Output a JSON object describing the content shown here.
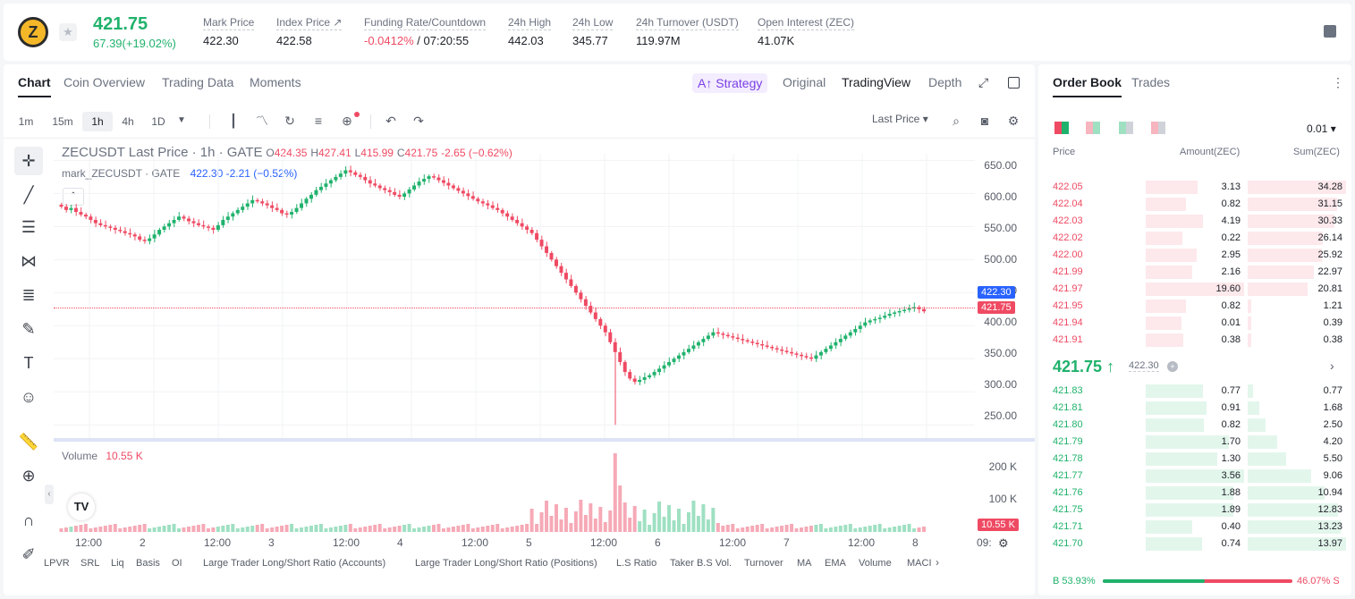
{
  "ticker": {
    "last_price": "421.75",
    "change": "67.39(+19.02%)",
    "stats": [
      {
        "label": "Mark Price",
        "value": "422.30"
      },
      {
        "label": "Index Price ↗",
        "value": "422.58"
      },
      {
        "label": "Funding Rate/Countdown",
        "value_red": "-0.0412%",
        "value": " / 07:20:55"
      },
      {
        "label": "24h High",
        "value": "442.03"
      },
      {
        "label": "24h Low",
        "value": "345.77"
      },
      {
        "label": "24h Turnover (USDT)",
        "value": "119.97M"
      },
      {
        "label": "Open Interest (ZEC)",
        "value": "41.07K"
      }
    ]
  },
  "chart_tabs": [
    "Chart",
    "Coin Overview",
    "Trading Data",
    "Moments"
  ],
  "view_tabs": {
    "strategy": "A↑ Strategy",
    "original": "Original",
    "tradingview": "TradingView",
    "depth": "Depth"
  },
  "timeframes": [
    "1m",
    "15m",
    "1h",
    "4h",
    "1D"
  ],
  "selected_timeframe": "1h",
  "price_type": "Last Price",
  "legend": {
    "title": "ZECUSDT Last Price · 1h · GATE",
    "o": "424.35",
    "h": "427.41",
    "l": "415.99",
    "c": "421.75",
    "chg": "-2.65 (−0.62%)",
    "mark_name": "mark_ZECUSDT · GATE",
    "mark_val": "422.30  -2.21 (−0.52%)"
  },
  "price_axis": [
    "650.00",
    "600.00",
    "550.00",
    "500.00",
    "450.00",
    "400.00",
    "350.00",
    "300.00",
    "250.00"
  ],
  "price_tags": {
    "mark": "422.30",
    "last": "421.75"
  },
  "volume": {
    "label": "Volume",
    "value": "10.55 K",
    "axis": [
      "200 K",
      "100 K"
    ],
    "tag": "10.55 K"
  },
  "time_axis": [
    "12:00",
    "2",
    "12:00",
    "3",
    "12:00",
    "4",
    "12:00",
    "5",
    "12:00",
    "6",
    "12:00",
    "7",
    "12:00",
    "8",
    "09:"
  ],
  "indicators": [
    "LPVR",
    "SRL",
    "Liq",
    "Basis",
    "OI",
    "Large Trader Long/Short Ratio (Accounts)",
    "Large Trader Long/Short Ratio (Positions)",
    "L.S Ratio",
    "Taker B.S Vol.",
    "Turnover",
    "MA",
    "EMA",
    "Volume",
    "MACI"
  ],
  "order_book": {
    "tabs": [
      "Order Book",
      "Trades"
    ],
    "precision": "0.01",
    "headers": [
      "Price",
      "Amount(ZEC)",
      "Sum(ZEC)"
    ],
    "asks": [
      [
        "422.05",
        "3.13",
        "34.28"
      ],
      [
        "422.04",
        "0.82",
        "31.15"
      ],
      [
        "422.03",
        "4.19",
        "30.33"
      ],
      [
        "422.02",
        "0.22",
        "26.14"
      ],
      [
        "422.00",
        "2.95",
        "25.92"
      ],
      [
        "421.99",
        "2.16",
        "22.97"
      ],
      [
        "421.97",
        "19.60",
        "20.81"
      ],
      [
        "421.95",
        "0.82",
        "1.21"
      ],
      [
        "421.94",
        "0.01",
        "0.39"
      ],
      [
        "421.91",
        "0.38",
        "0.38"
      ]
    ],
    "mid_price": "421.75",
    "mid_mark": "422.30",
    "bids": [
      [
        "421.83",
        "0.77",
        "0.77"
      ],
      [
        "421.81",
        "0.91",
        "1.68"
      ],
      [
        "421.80",
        "0.82",
        "2.50"
      ],
      [
        "421.79",
        "1.70",
        "4.20"
      ],
      [
        "421.78",
        "1.30",
        "5.50"
      ],
      [
        "421.77",
        "3.56",
        "9.06"
      ],
      [
        "421.76",
        "1.88",
        "10.94"
      ],
      [
        "421.75",
        "1.89",
        "12.83"
      ],
      [
        "421.71",
        "0.40",
        "13.23"
      ],
      [
        "421.70",
        "0.74",
        "13.97"
      ]
    ],
    "buy_ratio": "B 53.93%",
    "sell_ratio": "46.07% S",
    "buy_fraction": 0.5393
  },
  "colors": {
    "up": "#20b26c",
    "down": "#ef4a63",
    "accent": "#7b3fe4"
  },
  "chart_data": {
    "type": "candlestick",
    "y_range": [
      230,
      660
    ],
    "closes": [
      580,
      575,
      578,
      572,
      568,
      565,
      560,
      555,
      552,
      550,
      548,
      545,
      543,
      540,
      538,
      535,
      530,
      528,
      532,
      538,
      545,
      550,
      555,
      560,
      565,
      562,
      558,
      555,
      552,
      550,
      548,
      545,
      552,
      560,
      565,
      570,
      575,
      580,
      585,
      590,
      588,
      585,
      582,
      578,
      575,
      570,
      568,
      572,
      578,
      585,
      592,
      598,
      605,
      610,
      615,
      620,
      625,
      630,
      635,
      632,
      628,
      625,
      620,
      615,
      612,
      608,
      605,
      602,
      598,
      595,
      600,
      606,
      612,
      618,
      622,
      626,
      624,
      620,
      616,
      612,
      608,
      604,
      600,
      596,
      592,
      588,
      585,
      582,
      578,
      575,
      570,
      565,
      560,
      555,
      550,
      545,
      540,
      530,
      520,
      510,
      500,
      490,
      480,
      470,
      460,
      450,
      440,
      430,
      420,
      410,
      400,
      390,
      375,
      360,
      345,
      330,
      320,
      315,
      318,
      322,
      325,
      330,
      335,
      340,
      345,
      350,
      355,
      360,
      365,
      370,
      375,
      380,
      385,
      390,
      388,
      386,
      384,
      382,
      380,
      378,
      376,
      374,
      372,
      370,
      368,
      366,
      364,
      362,
      360,
      358,
      356,
      354,
      352,
      350,
      355,
      360,
      365,
      370,
      375,
      380,
      385,
      390,
      395,
      400,
      405,
      408,
      410,
      412,
      415,
      418,
      420,
      422,
      424,
      426,
      428,
      425,
      421.75
    ]
  }
}
